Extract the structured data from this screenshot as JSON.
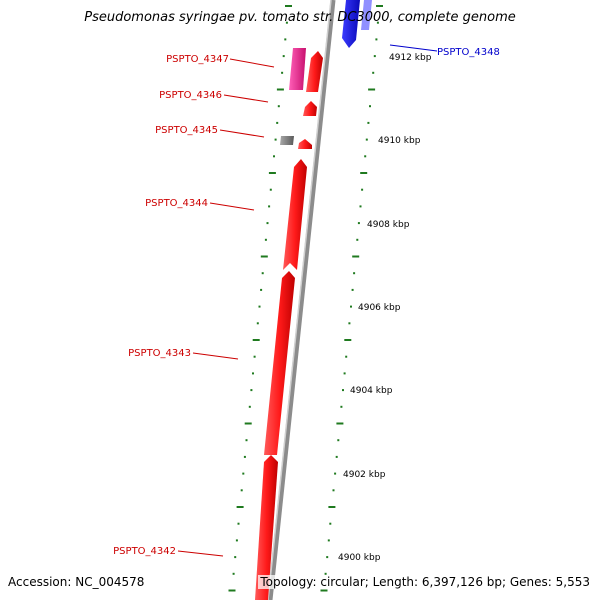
{
  "title": "Pseudomonas syringae pv. tomato str. DC3000, complete genome",
  "footer": {
    "accession": "Accession: NC_004578",
    "topology": "Topology: circular; Length: 6,397,126 bp; Genes: 5,553"
  },
  "colors": {
    "forward_gene": "#ff1010",
    "reverse_gene": "#1a1aff",
    "highlight_gene": "#e8208a",
    "pseudo_gene": "#808080",
    "backbone": "#8c8c8c",
    "tick": "#1f7a1f",
    "label_forward": "#cc0000",
    "label_reverse": "#0000cc"
  },
  "scale_labels": [
    "4912 kbp",
    "4910 kbp",
    "4908 kbp",
    "4906 kbp",
    "4904 kbp",
    "4902 kbp",
    "4900 kbp"
  ],
  "gene_labels": [
    {
      "name": "PSPTO_4348",
      "strand": "reverse"
    },
    {
      "name": "PSPTO_4347",
      "strand": "forward"
    },
    {
      "name": "PSPTO_4346",
      "strand": "forward"
    },
    {
      "name": "PSPTO_4345",
      "strand": "forward"
    },
    {
      "name": "PSPTO_4344",
      "strand": "forward"
    },
    {
      "name": "PSPTO_4343",
      "strand": "forward"
    },
    {
      "name": "PSPTO_4342",
      "strand": "forward"
    }
  ]
}
